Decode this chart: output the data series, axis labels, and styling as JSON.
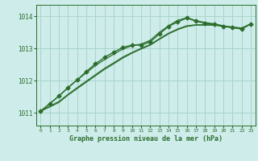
{
  "title": "Graphe pression niveau de la mer (hPa)",
  "background_color": "#cdecea",
  "grid_color": "#aad4cc",
  "line_color": "#2d6e2d",
  "xlim": [
    -0.5,
    23.5
  ],
  "ylim": [
    1010.6,
    1014.35
  ],
  "xticks": [
    0,
    1,
    2,
    3,
    4,
    5,
    6,
    7,
    8,
    9,
    10,
    11,
    12,
    13,
    14,
    15,
    16,
    17,
    18,
    19,
    20,
    21,
    22,
    23
  ],
  "yticks": [
    1011,
    1012,
    1013,
    1014
  ],
  "series": [
    {
      "x": [
        0,
        1,
        2,
        3,
        4,
        5,
        6,
        7,
        8,
        9,
        10,
        11,
        12,
        13,
        14,
        15,
        16,
        17,
        18,
        19,
        20,
        21,
        22,
        23
      ],
      "y": [
        1011.05,
        1011.28,
        1011.52,
        1011.78,
        1012.02,
        1012.28,
        1012.52,
        1012.72,
        1012.88,
        1013.03,
        1013.1,
        1013.1,
        1013.2,
        1013.45,
        1013.68,
        1013.82,
        1013.94,
        1013.84,
        1013.78,
        1013.74,
        1013.68,
        1013.64,
        1013.6,
        1013.76
      ],
      "marker": "D",
      "markersize": 2.5,
      "linewidth": 1.0
    },
    {
      "x": [
        0,
        1,
        2,
        3,
        4,
        5,
        6,
        7,
        8,
        9,
        10,
        11,
        12,
        13,
        14,
        15,
        16,
        17,
        18,
        19,
        20,
        21,
        22,
        23
      ],
      "y": [
        1011.05,
        1011.28,
        1011.52,
        1011.78,
        1012.02,
        1012.24,
        1012.47,
        1012.65,
        1012.82,
        1012.98,
        1013.08,
        1013.13,
        1013.25,
        1013.5,
        1013.7,
        1013.87,
        1013.95,
        1013.86,
        1013.8,
        1013.76,
        1013.7,
        1013.65,
        1013.6,
        1013.76
      ],
      "marker": null,
      "markersize": 0,
      "linewidth": 0.9
    },
    {
      "x": [
        0,
        1,
        2,
        3,
        4,
        5,
        6,
        7,
        8,
        9,
        10,
        11,
        12,
        13,
        14,
        15,
        16,
        17,
        18,
        19,
        20,
        21,
        22,
        23
      ],
      "y": [
        1011.05,
        1011.18,
        1011.32,
        1011.55,
        1011.75,
        1011.95,
        1012.15,
        1012.35,
        1012.52,
        1012.7,
        1012.85,
        1012.98,
        1013.1,
        1013.28,
        1013.45,
        1013.58,
        1013.68,
        1013.72,
        1013.72,
        1013.72,
        1013.68,
        1013.65,
        1013.62,
        1013.76
      ],
      "marker": null,
      "markersize": 0,
      "linewidth": 0.9
    },
    {
      "x": [
        0,
        1,
        2,
        3,
        4,
        5,
        6,
        7,
        8,
        9,
        10,
        11,
        12,
        13,
        14,
        15,
        16,
        17,
        18,
        19,
        20,
        21,
        22,
        23
      ],
      "y": [
        1011.05,
        1011.2,
        1011.35,
        1011.57,
        1011.78,
        1011.98,
        1012.18,
        1012.38,
        1012.55,
        1012.73,
        1012.87,
        1013.0,
        1013.12,
        1013.3,
        1013.47,
        1013.6,
        1013.7,
        1013.73,
        1013.73,
        1013.73,
        1013.69,
        1013.66,
        1013.63,
        1013.76
      ],
      "marker": null,
      "markersize": 0,
      "linewidth": 0.9
    }
  ]
}
